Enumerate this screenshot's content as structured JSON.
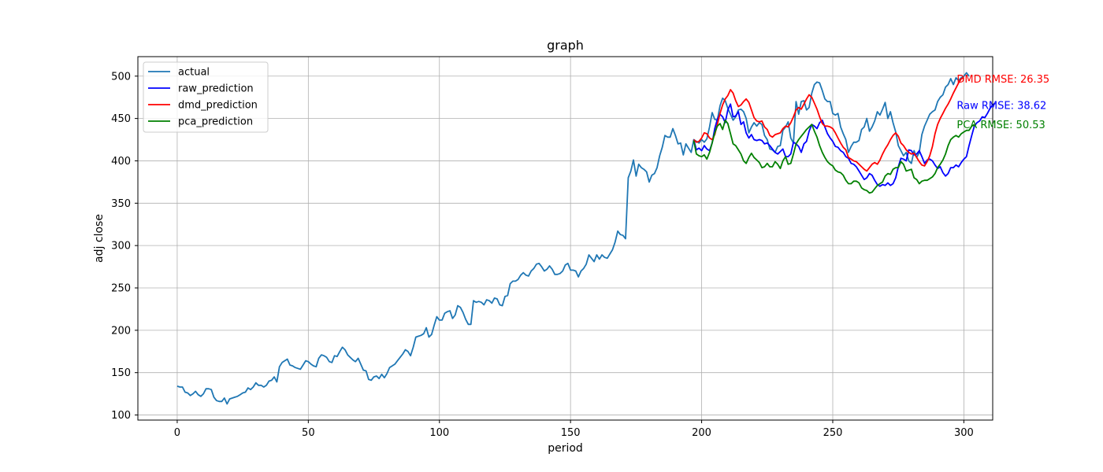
{
  "chart_data": {
    "type": "line",
    "title": "graph",
    "xlabel": "period",
    "ylabel": "adj close",
    "xlim": [
      -15,
      311
    ],
    "ylim": [
      94,
      523
    ],
    "xticks": [
      0,
      50,
      100,
      150,
      200,
      250,
      300
    ],
    "yticks": [
      100,
      150,
      200,
      250,
      300,
      350,
      400,
      450,
      500
    ],
    "grid": true,
    "legend_position": "top-left",
    "series": [
      {
        "name": "actual",
        "color": "#1f77b4",
        "x_start": 0,
        "values": [
          134,
          133,
          133,
          127,
          126,
          123,
          125,
          128,
          124,
          122,
          125,
          131,
          131,
          130,
          121,
          117,
          116,
          116,
          120,
          113,
          119,
          120,
          121,
          122,
          124,
          126,
          127,
          132,
          130,
          133,
          138,
          135,
          135,
          133,
          135,
          140,
          141,
          145,
          139,
          157,
          162,
          164,
          166,
          159,
          158,
          156,
          155,
          154,
          159,
          164,
          163,
          160,
          158,
          157,
          167,
          171,
          170,
          168,
          163,
          162,
          170,
          169,
          175,
          180,
          177,
          171,
          168,
          165,
          163,
          167,
          160,
          153,
          152,
          142,
          141,
          145,
          146,
          143,
          148,
          144,
          149,
          156,
          158,
          160,
          164,
          168,
          172,
          177,
          175,
          170,
          180,
          192,
          193,
          194,
          196,
          203,
          192,
          195,
          206,
          216,
          212,
          212,
          220,
          222,
          223,
          214,
          218,
          229,
          227,
          221,
          213,
          207,
          207,
          235,
          233,
          234,
          233,
          230,
          236,
          235,
          232,
          238,
          237,
          230,
          229,
          240,
          241,
          255,
          258,
          258,
          260,
          265,
          268,
          265,
          264,
          270,
          273,
          278,
          279,
          275,
          270,
          272,
          276,
          272,
          266,
          266,
          267,
          270,
          277,
          279,
          271,
          271,
          270,
          263,
          270,
          273,
          278,
          289,
          285,
          281,
          289,
          284,
          289,
          286,
          285,
          290,
          295,
          304,
          317,
          313,
          312,
          308,
          380,
          388,
          401,
          382,
          396,
          392,
          390,
          387,
          375,
          383,
          385,
          392,
          406,
          416,
          430,
          428,
          428,
          438,
          430,
          420,
          421,
          407,
          420,
          415,
          410,
          425,
          423,
          421,
          425,
          422,
          426,
          440,
          457,
          449,
          448,
          465,
          474,
          471,
          462,
          455,
          448,
          452,
          460,
          461,
          458,
          450,
          433,
          440,
          445,
          441,
          445,
          443,
          430,
          425,
          414,
          413,
          410,
          417,
          418,
          436,
          440,
          446,
          427,
          421,
          470,
          455,
          470,
          471,
          460,
          463,
          480,
          490,
          493,
          492,
          483,
          473,
          470,
          470,
          456,
          454,
          456,
          440,
          432,
          425,
          410,
          417,
          422,
          422,
          424,
          437,
          440,
          450,
          435,
          440,
          447,
          458,
          454,
          461,
          469,
          450,
          458,
          445,
          434,
          418,
          412,
          406,
          410,
          400,
          397,
          412,
          404,
          410,
          431,
          441,
          448,
          455,
          458,
          460,
          470,
          475,
          478,
          487,
          490,
          497,
          490,
          498,
          495,
          498,
          500,
          504,
          500
        ]
      },
      {
        "name": "raw_prediction",
        "color": "#0000ff",
        "x_start": 197,
        "values": [
          425,
          413,
          415,
          412,
          418,
          414,
          412,
          421,
          438,
          449,
          455,
          452,
          445,
          460,
          467,
          452,
          453,
          458,
          443,
          446,
          433,
          427,
          431,
          425,
          424,
          425,
          424,
          420,
          421,
          418,
          414,
          410,
          408,
          411,
          414,
          405,
          405,
          408,
          422,
          420,
          417,
          410,
          420,
          423,
          435,
          443,
          441,
          438,
          445,
          448,
          440,
          432,
          427,
          423,
          417,
          416,
          412,
          410,
          405,
          403,
          397,
          396,
          393,
          388,
          383,
          378,
          380,
          385,
          383,
          377,
          372,
          370,
          372,
          371,
          374,
          371,
          373,
          380,
          393,
          403,
          402,
          400,
          413,
          412,
          407,
          408,
          412,
          405,
          397,
          401,
          402,
          400,
          395,
          391,
          393,
          386,
          382,
          385,
          392,
          392,
          395,
          393,
          398,
          402,
          405,
          418,
          430,
          441,
          445,
          447,
          452,
          451,
          456,
          462,
          466,
          468
        ]
      },
      {
        "name": "dmd_prediction",
        "color": "#ff0000",
        "x_start": 197,
        "values": [
          425,
          422,
          423,
          427,
          433,
          432,
          427,
          425,
          431,
          443,
          456,
          466,
          473,
          477,
          484,
          480,
          471,
          464,
          466,
          470,
          473,
          469,
          460,
          451,
          447,
          446,
          447,
          440,
          437,
          430,
          428,
          431,
          432,
          433,
          438,
          441,
          440,
          445,
          452,
          460,
          463,
          461,
          467,
          473,
          478,
          475,
          468,
          461,
          452,
          444,
          441,
          441,
          440,
          438,
          433,
          427,
          421,
          416,
          413,
          404,
          402,
          400,
          399,
          396,
          393,
          390,
          388,
          392,
          396,
          398,
          396,
          401,
          408,
          414,
          419,
          425,
          430,
          433,
          429,
          421,
          418,
          413,
          410,
          408,
          409,
          404,
          399,
          395,
          394,
          399,
          406,
          417,
          432,
          443,
          450,
          456,
          462,
          467,
          473,
          480,
          486,
          492,
          497,
          498
        ]
      },
      {
        "name": "pca_prediction",
        "color": "#008000",
        "x_start": 197,
        "values": [
          424,
          408,
          406,
          405,
          407,
          402,
          410,
          421,
          433,
          441,
          444,
          437,
          448,
          444,
          432,
          420,
          418,
          413,
          408,
          400,
          397,
          404,
          409,
          404,
          401,
          398,
          392,
          393,
          397,
          393,
          393,
          399,
          396,
          391,
          400,
          405,
          396,
          397,
          408,
          420,
          425,
          429,
          433,
          437,
          440,
          443,
          435,
          428,
          418,
          410,
          404,
          399,
          396,
          394,
          389,
          387,
          386,
          383,
          377,
          373,
          373,
          376,
          376,
          374,
          368,
          366,
          365,
          362,
          363,
          367,
          371,
          373,
          375,
          382,
          385,
          384,
          390,
          392,
          392,
          399,
          396,
          388,
          389,
          390,
          380,
          378,
          373,
          376,
          377,
          377,
          379,
          381,
          385,
          392,
          396,
          401,
          408,
          418,
          425,
          428,
          430,
          428,
          432,
          434,
          436,
          436,
          441,
          443
        ]
      }
    ],
    "annotations": [
      {
        "text": "DMD RMSE: 26.35",
        "color": "#ff0000",
        "x": 297,
        "y": 497
      },
      {
        "text": "Raw RMSE: 38.62",
        "color": "#0000ff",
        "x": 297,
        "y": 466
      },
      {
        "text": "PCA RMSE: 50.53",
        "color": "#008000",
        "x": 297,
        "y": 443
      }
    ]
  }
}
